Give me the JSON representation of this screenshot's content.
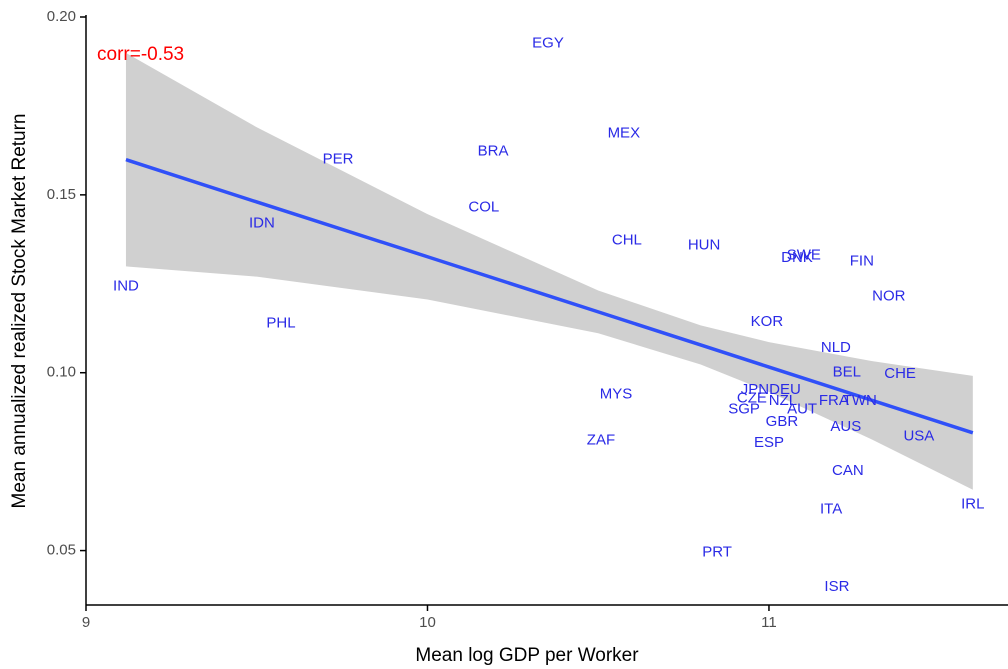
{
  "chart_data": {
    "type": "scatter",
    "x_label": "Mean log GDP per Worker",
    "y_label": "Mean annualized realized Stock Market Return",
    "annotation": "corr=-0.53",
    "annotation_color": "#ff0000",
    "point_color": "#2a2ae6",
    "fit_color": "#3050f8",
    "band_color": "#d0d0d0",
    "xlim": [
      9,
      11.7
    ],
    "ylim": [
      0.0347,
      0.2
    ],
    "xticks": [
      9,
      10,
      11
    ],
    "yticks": [
      {
        "value": 0.05,
        "label": "0.05"
      },
      {
        "value": 0.1,
        "label": "0.10"
      },
      {
        "value": 0.15,
        "label": "0.15"
      },
      {
        "value": 0.2,
        "label": "0.20"
      }
    ],
    "labels": [
      "EGY",
      "MEX",
      "BRA",
      "PER",
      "COL",
      "IDN",
      "CHL",
      "HUN",
      "SWE",
      "DNK",
      "FIN",
      "IND",
      "NOR",
      "PHL",
      "KOR",
      "NLD",
      "BEL",
      "CHE",
      "MYS",
      "JPN",
      "DEU",
      "FRA",
      "TWN",
      "CZE",
      "NZL",
      "SGP",
      "AUT",
      "GBR",
      "AUS",
      "USA",
      "ZAF",
      "ESP",
      "CAN",
      "IRL",
      "ITA",
      "PRT",
      "ISR"
    ],
    "x": [
      10.353,
      10.575,
      10.192,
      9.738,
      10.165,
      9.515,
      10.584,
      10.81,
      11.102,
      11.082,
      11.272,
      9.117,
      11.351,
      9.571,
      10.994,
      11.196,
      11.228,
      11.384,
      10.552,
      10.959,
      11.047,
      11.19,
      11.266,
      10.95,
      11.041,
      10.927,
      11.097,
      11.038,
      11.225,
      11.439,
      10.508,
      11.0,
      11.231,
      11.597,
      11.182,
      10.848,
      11.199
    ],
    "y": [
      0.1925,
      0.1672,
      0.1622,
      0.1599,
      0.1464,
      0.1419,
      0.1371,
      0.1357,
      0.1329,
      0.1323,
      0.1312,
      0.1242,
      0.1214,
      0.1138,
      0.1143,
      0.107,
      0.1,
      0.0997,
      0.0938,
      0.0952,
      0.0952,
      0.0921,
      0.0921,
      0.0927,
      0.0921,
      0.0896,
      0.0896,
      0.0862,
      0.0848,
      0.082,
      0.0809,
      0.0803,
      0.0724,
      0.0629,
      0.0615,
      0.0494,
      0.0398
    ],
    "fit_x": [
      9.117,
      9.5,
      10.0,
      10.5,
      10.8,
      11.0,
      11.3,
      11.597
    ],
    "fit_y": [
      0.1599,
      0.148,
      0.1326,
      0.1171,
      0.1078,
      0.1016,
      0.0923,
      0.0831
    ],
    "fit_lower": [
      0.1299,
      0.127,
      0.1206,
      0.1111,
      0.1023,
      0.0946,
      0.0813,
      0.0671
    ],
    "fit_upper": [
      0.1899,
      0.169,
      0.1446,
      0.1231,
      0.1133,
      0.1086,
      0.1033,
      0.0991
    ]
  }
}
